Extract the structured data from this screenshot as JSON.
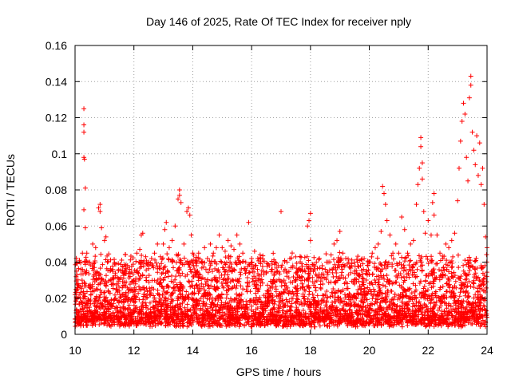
{
  "chart_data": {
    "type": "scatter",
    "title": "Day 146 of 2025, Rate Of TEC Index for receiver nply",
    "xlabel": "GPS time / hours",
    "ylabel": "ROTI / TECUs",
    "xlim": [
      10,
      24
    ],
    "ylim": [
      0,
      0.16
    ],
    "xticks": [
      10,
      12,
      14,
      16,
      18,
      20,
      22,
      24
    ],
    "yticks": [
      0,
      0.02,
      0.04,
      0.06,
      0.08,
      0.1,
      0.12,
      0.14,
      0.16
    ],
    "xtick_labels": [
      "10",
      "12",
      "14",
      "16",
      "18",
      "20",
      "22",
      "24"
    ],
    "ytick_labels": [
      "0",
      "0.02",
      "0.04",
      "0.06",
      "0.08",
      "0.1",
      "0.12",
      "0.14",
      "0.16"
    ],
    "grid": true,
    "marker": "+",
    "color": "#ff0000",
    "series": [
      {
        "name": "ROTI",
        "points": [
          [
            10.0,
            0.022
          ],
          [
            10.05,
            0.035
          ],
          [
            10.1,
            0.028
          ],
          [
            10.15,
            0.041
          ],
          [
            10.2,
            0.018
          ],
          [
            10.25,
            0.045
          ],
          [
            10.3,
            0.125
          ],
          [
            10.3,
            0.116
          ],
          [
            10.3,
            0.112
          ],
          [
            10.3,
            0.098
          ],
          [
            10.32,
            0.097
          ],
          [
            10.35,
            0.081
          ],
          [
            10.3,
            0.069
          ],
          [
            10.35,
            0.059
          ],
          [
            10.4,
            0.045
          ],
          [
            10.5,
            0.04
          ],
          [
            10.6,
            0.05
          ],
          [
            10.7,
            0.048
          ],
          [
            10.8,
            0.07
          ],
          [
            10.85,
            0.072
          ],
          [
            10.85,
            0.068
          ],
          [
            10.9,
            0.059
          ],
          [
            11.0,
            0.052
          ],
          [
            11.05,
            0.054
          ],
          [
            11.1,
            0.04
          ],
          [
            11.2,
            0.03
          ],
          [
            11.3,
            0.028
          ],
          [
            11.4,
            0.025
          ],
          [
            11.5,
            0.024
          ],
          [
            11.6,
            0.022
          ],
          [
            11.7,
            0.021
          ],
          [
            11.8,
            0.023
          ],
          [
            11.9,
            0.025
          ],
          [
            12.0,
            0.03
          ],
          [
            12.1,
            0.045
          ],
          [
            12.2,
            0.047
          ],
          [
            12.25,
            0.055
          ],
          [
            12.3,
            0.056
          ],
          [
            12.4,
            0.043
          ],
          [
            12.5,
            0.04
          ],
          [
            12.6,
            0.042
          ],
          [
            12.7,
            0.045
          ],
          [
            12.8,
            0.05
          ],
          [
            12.9,
            0.043
          ],
          [
            13.0,
            0.05
          ],
          [
            13.05,
            0.058
          ],
          [
            13.1,
            0.062
          ],
          [
            13.2,
            0.048
          ],
          [
            13.3,
            0.052
          ],
          [
            13.4,
            0.06
          ],
          [
            13.5,
            0.075
          ],
          [
            13.55,
            0.08
          ],
          [
            13.55,
            0.077
          ],
          [
            13.6,
            0.073
          ],
          [
            13.7,
            0.05
          ],
          [
            13.8,
            0.068
          ],
          [
            13.85,
            0.07
          ],
          [
            13.9,
            0.066
          ],
          [
            13.95,
            0.055
          ],
          [
            14.0,
            0.045
          ],
          [
            14.1,
            0.04
          ],
          [
            14.2,
            0.045
          ],
          [
            14.3,
            0.04
          ],
          [
            14.4,
            0.048
          ],
          [
            14.5,
            0.042
          ],
          [
            14.6,
            0.05
          ],
          [
            14.7,
            0.045
          ],
          [
            14.8,
            0.048
          ],
          [
            14.9,
            0.055
          ],
          [
            15.0,
            0.048
          ],
          [
            15.1,
            0.046
          ],
          [
            15.2,
            0.052
          ],
          [
            15.3,
            0.049
          ],
          [
            15.4,
            0.047
          ],
          [
            15.5,
            0.055
          ],
          [
            15.6,
            0.05
          ],
          [
            15.7,
            0.045
          ],
          [
            15.8,
            0.04
          ],
          [
            15.9,
            0.062
          ],
          [
            16.0,
            0.042
          ],
          [
            16.1,
            0.046
          ],
          [
            16.2,
            0.036
          ],
          [
            16.3,
            0.03
          ],
          [
            16.4,
            0.035
          ],
          [
            16.5,
            0.034
          ],
          [
            16.6,
            0.038
          ],
          [
            16.7,
            0.036
          ],
          [
            16.8,
            0.04
          ],
          [
            16.9,
            0.038
          ],
          [
            17.0,
            0.068
          ],
          [
            17.1,
            0.035
          ],
          [
            17.2,
            0.04
          ],
          [
            17.3,
            0.042
          ],
          [
            17.4,
            0.038
          ],
          [
            17.5,
            0.034
          ],
          [
            17.6,
            0.036
          ],
          [
            17.7,
            0.032
          ],
          [
            17.8,
            0.03
          ],
          [
            17.9,
            0.06
          ],
          [
            17.95,
            0.063
          ],
          [
            18.0,
            0.067
          ],
          [
            18.0,
            0.052
          ],
          [
            18.1,
            0.035
          ],
          [
            18.2,
            0.04
          ],
          [
            18.3,
            0.042
          ],
          [
            18.4,
            0.038
          ],
          [
            18.5,
            0.036
          ],
          [
            18.6,
            0.04
          ],
          [
            18.7,
            0.044
          ],
          [
            18.8,
            0.05
          ],
          [
            18.9,
            0.052
          ],
          [
            19.0,
            0.057
          ],
          [
            19.1,
            0.045
          ],
          [
            19.2,
            0.042
          ],
          [
            19.3,
            0.04
          ],
          [
            19.4,
            0.038
          ],
          [
            19.5,
            0.035
          ],
          [
            19.6,
            0.04
          ],
          [
            19.7,
            0.038
          ],
          [
            19.8,
            0.036
          ],
          [
            19.9,
            0.035
          ],
          [
            20.0,
            0.04
          ],
          [
            20.1,
            0.045
          ],
          [
            20.2,
            0.048
          ],
          [
            20.3,
            0.05
          ],
          [
            20.4,
            0.057
          ],
          [
            20.45,
            0.082
          ],
          [
            20.5,
            0.078
          ],
          [
            20.55,
            0.072
          ],
          [
            20.6,
            0.063
          ],
          [
            20.7,
            0.055
          ],
          [
            20.8,
            0.045
          ],
          [
            20.9,
            0.05
          ],
          [
            21.0,
            0.045
          ],
          [
            21.1,
            0.065
          ],
          [
            21.2,
            0.058
          ],
          [
            21.3,
            0.045
          ],
          [
            21.4,
            0.05
          ],
          [
            21.5,
            0.052
          ],
          [
            21.6,
            0.072
          ],
          [
            21.65,
            0.083
          ],
          [
            21.7,
            0.092
          ],
          [
            21.75,
            0.104
          ],
          [
            21.75,
            0.109
          ],
          [
            21.8,
            0.095
          ],
          [
            21.8,
            0.086
          ],
          [
            21.85,
            0.068
          ],
          [
            21.9,
            0.056
          ],
          [
            22.0,
            0.063
          ],
          [
            22.1,
            0.055
          ],
          [
            22.15,
            0.073
          ],
          [
            22.2,
            0.078
          ],
          [
            22.2,
            0.066
          ],
          [
            22.3,
            0.055
          ],
          [
            22.4,
            0.045
          ],
          [
            22.5,
            0.042
          ],
          [
            22.6,
            0.05
          ],
          [
            22.7,
            0.048
          ],
          [
            22.8,
            0.052
          ],
          [
            22.9,
            0.056
          ],
          [
            23.0,
            0.074
          ],
          [
            23.05,
            0.092
          ],
          [
            23.1,
            0.107
          ],
          [
            23.15,
            0.118
          ],
          [
            23.2,
            0.128
          ],
          [
            23.25,
            0.122
          ],
          [
            23.3,
            0.098
          ],
          [
            23.35,
            0.085
          ],
          [
            23.4,
            0.131
          ],
          [
            23.45,
            0.138
          ],
          [
            23.45,
            0.143
          ],
          [
            23.5,
            0.112
          ],
          [
            23.55,
            0.102
          ],
          [
            23.6,
            0.094
          ],
          [
            23.65,
            0.11
          ],
          [
            23.7,
            0.088
          ],
          [
            23.75,
            0.106
          ],
          [
            23.8,
            0.083
          ],
          [
            23.85,
            0.092
          ],
          [
            23.9,
            0.072
          ],
          [
            23.95,
            0.054
          ],
          [
            24.0,
            0.048
          ]
        ]
      }
    ]
  }
}
